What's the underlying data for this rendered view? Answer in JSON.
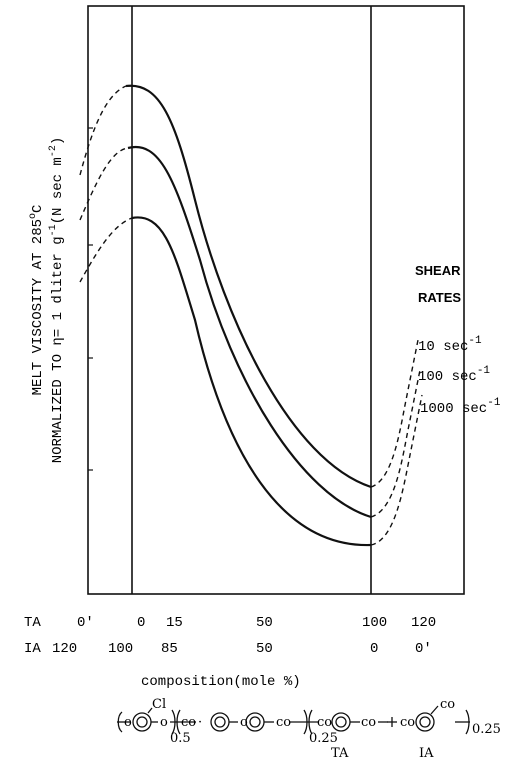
{
  "chart_data": {
    "type": "line",
    "ylabel": {
      "line1": "MELT VISCOSITY AT 285",
      "line1_sup": "o",
      "line1_end": "C",
      "line2": "NORMALIZED TO ",
      "line2_eta": "η",
      "line2_rest": "= 1 dliter g",
      "line2_sup1": "-1",
      "line2_rest2": "(N sec m",
      "line2_sup2": "-2",
      "line2_end": ")"
    },
    "xlabel": "composition(mole %)",
    "x_rows": [
      {
        "label": "TA",
        "ticks": [
          "0'",
          "0",
          "15",
          "50",
          "100",
          "120"
        ]
      },
      {
        "label": "IA",
        "ticks": [
          "120",
          "100",
          "85",
          "50",
          "0",
          "0'"
        ]
      }
    ],
    "legend_title": [
      "SHEAR",
      "RATES"
    ],
    "series": [
      {
        "name": "10 sec",
        "sup": "-1",
        "line": "solid-with-dashed-extrapolation"
      },
      {
        "name": "100 sec",
        "sup": "-1",
        "line": "solid-with-dashed-extrapolation"
      },
      {
        "name": "1000 sec",
        "sup": "-1",
        "line": "solid-with-dashed-extrapolation"
      }
    ],
    "vertical_reference_lines_at_TA": [
      0,
      100
    ],
    "grid": false,
    "y_ticks_labeled": false
  },
  "formula": {
    "subscripts": [
      "0.5",
      "0.25",
      "0.25"
    ],
    "labels": [
      "TA",
      "IA"
    ],
    "substituent": "Cl"
  }
}
